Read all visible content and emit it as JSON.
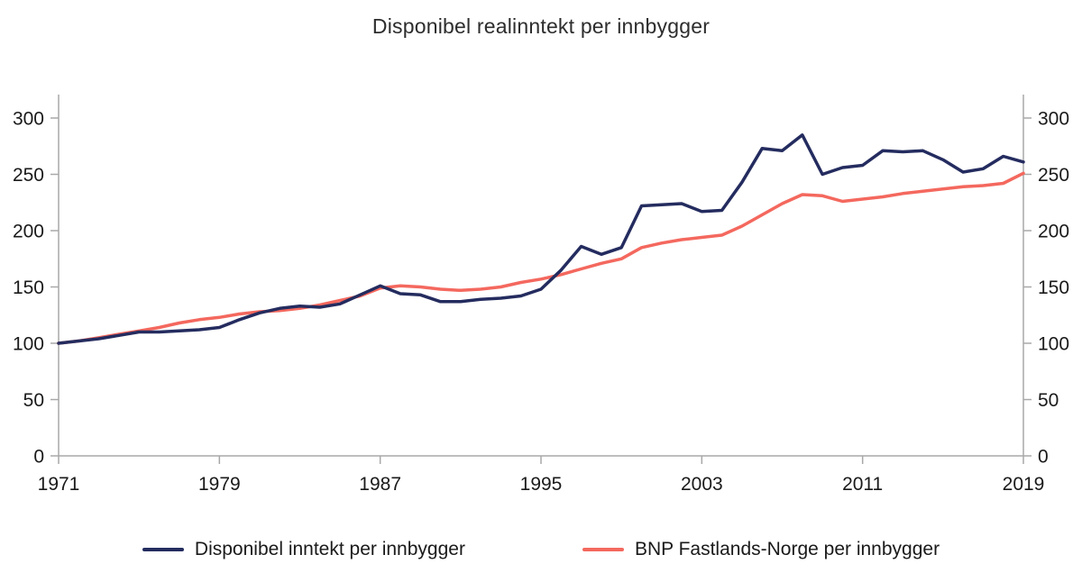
{
  "title": "Disponibel realinntekt per innbygger",
  "colors": {
    "series1": "#242c5f",
    "series2": "#f4685e",
    "axis": "#a8a8a8",
    "tick_text": "#1a1a1a",
    "background": "#ffffff"
  },
  "chart_data": {
    "type": "line",
    "title": "Disponibel realinntekt per innbygger",
    "xlabel": "",
    "ylabel": "",
    "ylim": [
      0,
      300
    ],
    "yticks": [
      0,
      50,
      100,
      150,
      200,
      250,
      300
    ],
    "xticks": [
      1971,
      1979,
      1987,
      1995,
      2003,
      2011,
      2019
    ],
    "grid": false,
    "legend_position": "bottom",
    "x": [
      1971,
      1972,
      1973,
      1974,
      1975,
      1976,
      1977,
      1978,
      1979,
      1980,
      1981,
      1982,
      1983,
      1984,
      1985,
      1986,
      1987,
      1988,
      1989,
      1990,
      1991,
      1992,
      1993,
      1994,
      1995,
      1996,
      1997,
      1998,
      1999,
      2000,
      2001,
      2002,
      2003,
      2004,
      2005,
      2006,
      2007,
      2008,
      2009,
      2010,
      2011,
      2012,
      2013,
      2014,
      2015,
      2016,
      2017,
      2018,
      2019
    ],
    "series": [
      {
        "name": "Disponibel inntekt per innbygger",
        "color": "#242c5f",
        "values": [
          100,
          102,
          104,
          107,
          110,
          110,
          111,
          112,
          114,
          121,
          127,
          131,
          133,
          132,
          135,
          143,
          151,
          144,
          143,
          137,
          137,
          139,
          140,
          142,
          148,
          165,
          186,
          179,
          185,
          222,
          223,
          224,
          217,
          218,
          243,
          273,
          271,
          285,
          250,
          256,
          258,
          271,
          270,
          271,
          263,
          252,
          255,
          266,
          261
        ]
      },
      {
        "name": "BNP Fastlands-Norge per innbygger",
        "color": "#f4685e",
        "values": [
          100,
          102,
          105,
          108,
          111,
          114,
          118,
          121,
          123,
          126,
          128,
          129,
          131,
          134,
          138,
          142,
          149,
          151,
          150,
          148,
          147,
          148,
          150,
          154,
          157,
          161,
          166,
          171,
          175,
          185,
          189,
          192,
          194,
          196,
          204,
          214,
          224,
          232,
          231,
          226,
          228,
          230,
          233,
          235,
          237,
          239,
          240,
          242,
          251
        ]
      }
    ]
  }
}
